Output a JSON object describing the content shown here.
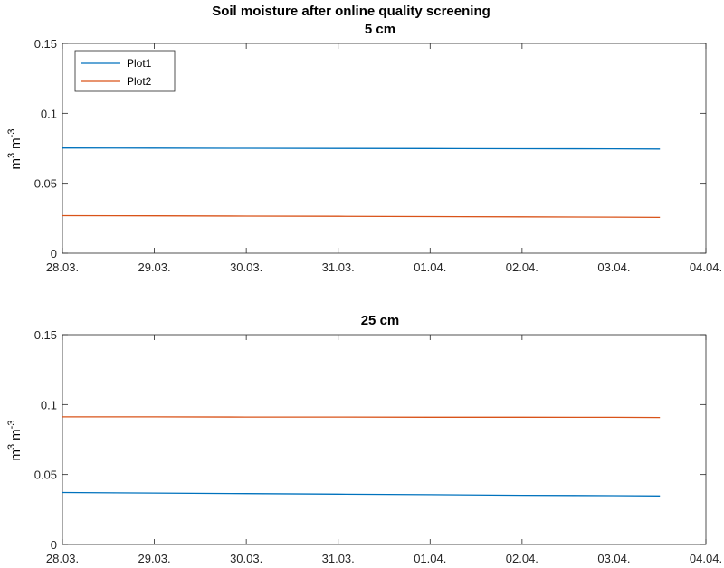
{
  "figure_title": "Soil moisture after online quality screening",
  "chart_data": [
    {
      "type": "line",
      "title": "5 cm",
      "ylabel_base": "m",
      "ylabel_exp1": "3",
      "ylabel_unit2": "m",
      "ylabel_exp2": "-3",
      "xlim": [
        0,
        7
      ],
      "ylim": [
        0,
        0.15
      ],
      "xticks": [
        0,
        1,
        2,
        3,
        4,
        5,
        6,
        7
      ],
      "xticklabels": [
        "28.03.",
        "29.03.",
        "30.03.",
        "31.03.",
        "01.04.",
        "02.04.",
        "03.04.",
        "04.04."
      ],
      "yticks": [
        0,
        0.05,
        0.1,
        0.15
      ],
      "yticklabels": [
        "0",
        "0.05",
        "0.1",
        "0.15"
      ],
      "legend_placement": "top-left",
      "series": [
        {
          "name": "Plot1",
          "color": "#0072BD",
          "x": [
            0,
            1,
            2,
            3,
            4,
            5,
            6,
            6.5
          ],
          "y": [
            0.0752,
            0.0751,
            0.075,
            0.0749,
            0.0748,
            0.0747,
            0.0746,
            0.0745
          ]
        },
        {
          "name": "Plot2",
          "color": "#D95319",
          "x": [
            0,
            1,
            2,
            3,
            4,
            5,
            6,
            6.5
          ],
          "y": [
            0.0268,
            0.0267,
            0.0265,
            0.0264,
            0.0262,
            0.026,
            0.0258,
            0.0256
          ]
        }
      ]
    },
    {
      "type": "line",
      "title": "25 cm",
      "ylabel_base": "m",
      "ylabel_exp1": "3",
      "ylabel_unit2": "m",
      "ylabel_exp2": "-3",
      "xlim": [
        0,
        7
      ],
      "ylim": [
        0,
        0.15
      ],
      "xticks": [
        0,
        1,
        2,
        3,
        4,
        5,
        6,
        7
      ],
      "xticklabels": [
        "28.03.",
        "29.03.",
        "30.03.",
        "31.03.",
        "01.04.",
        "02.04.",
        "03.04.",
        "04.04."
      ],
      "yticks": [
        0,
        0.05,
        0.1,
        0.15
      ],
      "yticklabels": [
        "0",
        "0.05",
        "0.1",
        "0.15"
      ],
      "series": [
        {
          "name": "Plot1",
          "color": "#0072BD",
          "x": [
            0,
            1,
            2,
            3,
            4,
            5,
            6,
            6.5
          ],
          "y": [
            0.0372,
            0.0368,
            0.0364,
            0.036,
            0.0356,
            0.0352,
            0.0349,
            0.0347
          ]
        },
        {
          "name": "Plot2",
          "color": "#D95319",
          "x": [
            0,
            1,
            2,
            3,
            4,
            5,
            6,
            6.5
          ],
          "y": [
            0.0912,
            0.0912,
            0.0911,
            0.0911,
            0.091,
            0.091,
            0.0909,
            0.0908
          ]
        }
      ]
    }
  ]
}
